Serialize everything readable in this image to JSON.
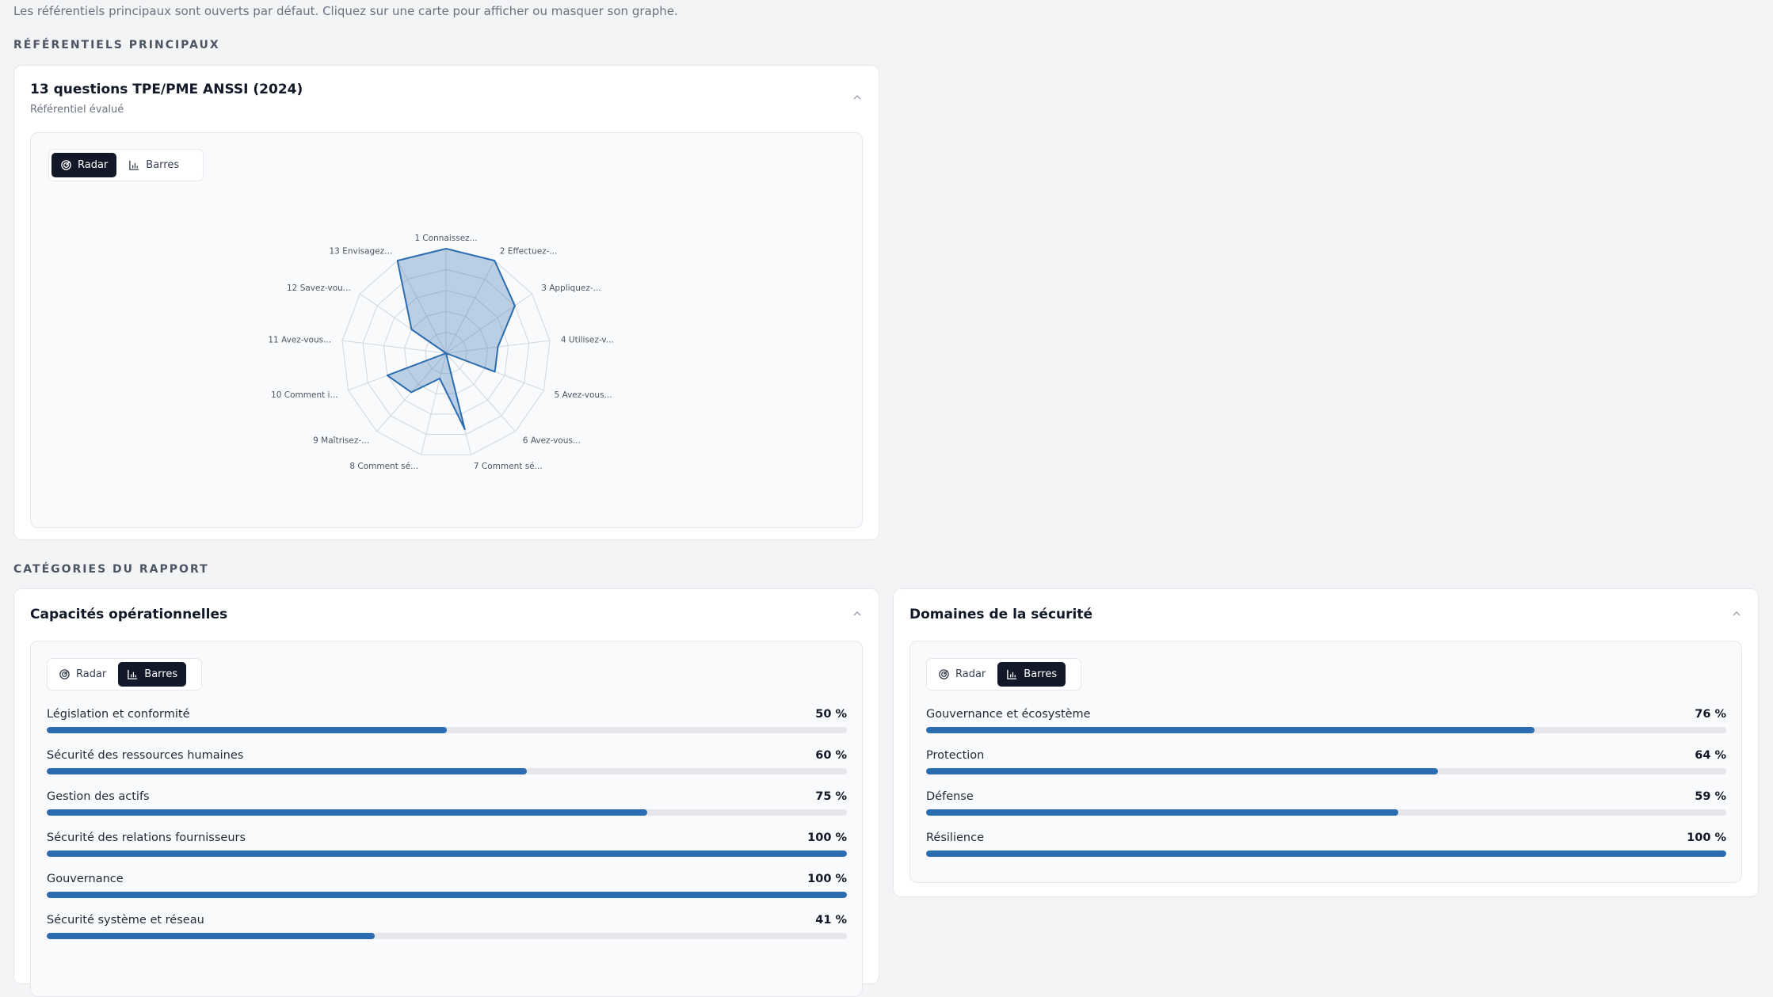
{
  "intro": "Les référentiels principaux sont ouverts par défaut. Cliquez sur une carte pour afficher ou masquer son graphe.",
  "sections": {
    "main_title": "RÉFÉRENTIELS PRINCIPAUX",
    "report_title": "CATÉGORIES DU RAPPORT"
  },
  "toggle": {
    "radar": "Radar",
    "bars": "Barres"
  },
  "referentiel": {
    "title": "13 questions TPE/PME ANSSI (2024)",
    "subtitle": "Référentiel évalué"
  },
  "chart_data": {
    "type": "radar",
    "categories": [
      "1 Connaissez...",
      "2 Effectuez-...",
      "3 Appliquez-...",
      "4 Utilisez-v...",
      "5 Avez-vous...",
      "6 Avez-vous...",
      "7 Comment sé...",
      "8 Comment sé...",
      "9 Maîtrisez-...",
      "10 Comment i...",
      "11 Avez-vous...",
      "12 Savez-vou...",
      "13 Envisagez..."
    ],
    "values": [
      100,
      100,
      80,
      50,
      50,
      0,
      75,
      25,
      50,
      60,
      0,
      40,
      100
    ],
    "range": [
      0,
      100
    ],
    "grid_levels": 5,
    "color": "#2b6cb0"
  },
  "capacites": {
    "title": "Capacités opérationnelles",
    "items": [
      {
        "label": "Législation et conformité",
        "value": "50 %",
        "pct": 50
      },
      {
        "label": "Sécurité des ressources humaines",
        "value": "60 %",
        "pct": 60
      },
      {
        "label": "Gestion des actifs",
        "value": "75 %",
        "pct": 75
      },
      {
        "label": "Sécurité des relations fournisseurs",
        "value": "100 %",
        "pct": 100
      },
      {
        "label": "Gouvernance",
        "value": "100 %",
        "pct": 100
      },
      {
        "label": "Sécurité système et réseau",
        "value": "41 %",
        "pct": 41
      }
    ]
  },
  "domaines": {
    "title": "Domaines de la sécurité",
    "items": [
      {
        "label": "Gouvernance et écosystème",
        "value": "76 %",
        "pct": 76
      },
      {
        "label": "Protection",
        "value": "64 %",
        "pct": 64
      },
      {
        "label": "Défense",
        "value": "59 %",
        "pct": 59
      },
      {
        "label": "Résilience",
        "value": "100 %",
        "pct": 100
      }
    ]
  },
  "colors": {
    "accent": "#2b6cb0",
    "dark": "#111827",
    "track": "#e5e7eb"
  }
}
